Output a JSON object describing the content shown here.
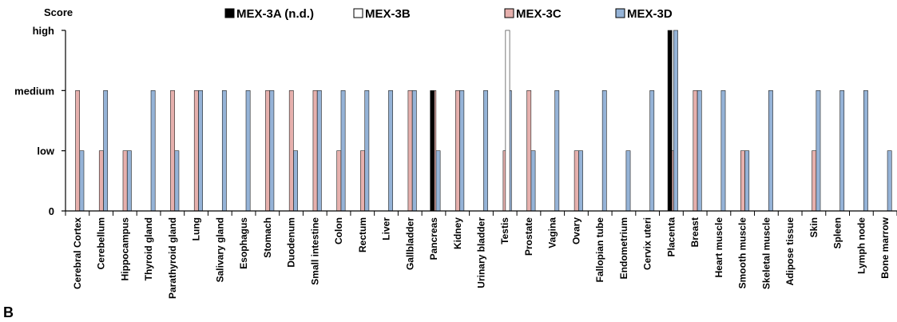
{
  "panel_label": "B",
  "colors": {
    "MEX-3A": "#000000",
    "MEX-3B": "#ffffff",
    "MEX-3C": "#e6b0ad",
    "MEX-3D": "#95b3d7",
    "axis": "#000000"
  },
  "chart_data": {
    "type": "bar",
    "ylabel": "Score",
    "xlabel": "",
    "yticks": [
      {
        "value": 0,
        "label": "0"
      },
      {
        "value": 1,
        "label": "low"
      },
      {
        "value": 2,
        "label": "medium"
      },
      {
        "value": 3,
        "label": "high"
      }
    ],
    "ylim": [
      0,
      3
    ],
    "legend_position": "top",
    "categories": [
      "Cerebral Cortex",
      "Cerebellum",
      "Hippocampus",
      "Thyroid gland",
      "Parathyroid gland",
      "Lung",
      "Salivary gland",
      "Esophagus",
      "Stomach",
      "Duodenum",
      "Small intestine",
      "Colon",
      "Rectum",
      "Liver",
      "Gallbladder",
      "Pancreas",
      "Kidney",
      "Urinary bladder",
      "Testis",
      "Prostate",
      "Vagina",
      "Ovary",
      "Fallopian tube",
      "Endometrium",
      "Cervix uteri",
      "Placenta",
      "Breast",
      "Heart muscle",
      "Smooth muscle",
      "Skeletal muscle",
      "Adipose tissue",
      "Skin",
      "Spleen",
      "Lymph node",
      "Bone marrow"
    ],
    "series": [
      {
        "name": "MEX-3A (n.d.)",
        "key": "MEX-3A",
        "values": [
          0,
          0,
          0,
          0,
          0,
          0,
          0,
          0,
          0,
          0,
          0,
          0,
          0,
          0,
          0,
          2,
          0,
          0,
          0,
          0,
          0,
          0,
          0,
          0,
          0,
          3,
          0,
          0,
          0,
          0,
          0,
          0,
          0,
          0,
          0
        ]
      },
      {
        "name": "MEX-3B",
        "key": "MEX-3B",
        "values": [
          0,
          0,
          0,
          0,
          0,
          0,
          0,
          0,
          0,
          0,
          0,
          0,
          0,
          0,
          0,
          0,
          0,
          0,
          3,
          0,
          0,
          0,
          0,
          0,
          0,
          0,
          0,
          0,
          0,
          0,
          0,
          0,
          0,
          0,
          0
        ]
      },
      {
        "name": "MEX-3C",
        "key": "MEX-3C",
        "values": [
          2,
          1,
          1,
          0,
          2,
          2,
          0,
          0,
          2,
          2,
          2,
          1,
          1,
          0,
          2,
          2,
          2,
          0,
          1,
          2,
          0,
          1,
          0,
          0,
          0,
          1,
          2,
          0,
          1,
          0,
          0,
          1,
          0,
          0,
          0
        ]
      },
      {
        "name": "MEX-3D",
        "key": "MEX-3D",
        "values": [
          1,
          2,
          1,
          2,
          1,
          2,
          2,
          2,
          2,
          1,
          2,
          2,
          2,
          2,
          2,
          1,
          2,
          2,
          2,
          1,
          2,
          1,
          2,
          1,
          2,
          3,
          2,
          2,
          1,
          2,
          0,
          2,
          2,
          2,
          1
        ]
      }
    ]
  }
}
